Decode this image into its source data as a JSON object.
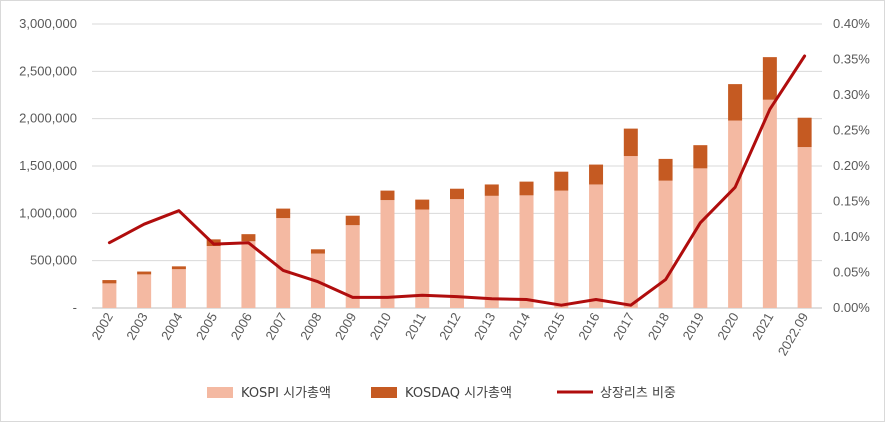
{
  "chart_data": {
    "type": "bar",
    "stacked": true,
    "categories": [
      "2002",
      "2003",
      "2004",
      "2005",
      "2006",
      "2007",
      "2008",
      "2009",
      "2010",
      "2011",
      "2012",
      "2013",
      "2014",
      "2015",
      "2016",
      "2017",
      "2018",
      "2019",
      "2020",
      "2021",
      "2022.09"
    ],
    "series": [
      {
        "name": "KOSPI 시가총액",
        "type": "bar",
        "axis": "left",
        "color": "#f4b9a2",
        "values": [
          260000,
          355000,
          410000,
          655000,
          705000,
          950000,
          575000,
          875000,
          1140000,
          1040000,
          1150000,
          1185000,
          1190000,
          1240000,
          1305000,
          1605000,
          1345000,
          1475000,
          1980000,
          2200000,
          1700000
        ]
      },
      {
        "name": "KOSDAQ 시가총액",
        "type": "bar",
        "axis": "left",
        "color": "#c55a22",
        "values": [
          35000,
          30000,
          30000,
          70000,
          75000,
          100000,
          45000,
          100000,
          100000,
          105000,
          110000,
          120000,
          145000,
          200000,
          210000,
          290000,
          230000,
          245000,
          385000,
          450000,
          310000
        ]
      },
      {
        "name": "상장리츠 비중",
        "type": "line",
        "axis": "right",
        "color": "#b00d0d",
        "values": [
          0.092,
          0.118,
          0.137,
          0.09,
          0.092,
          0.053,
          0.037,
          0.015,
          0.015,
          0.018,
          0.016,
          0.013,
          0.012,
          0.004,
          0.012,
          0.004,
          0.04,
          0.12,
          0.17,
          0.28,
          0.355
        ]
      }
    ],
    "y_left": {
      "ylim": [
        0,
        3000000
      ],
      "ticks": [
        0,
        500000,
        1000000,
        1500000,
        2000000,
        2500000,
        3000000
      ],
      "tick_labels": [
        "-",
        "500,000",
        "1,000,000",
        "1,500,000",
        "2,000,000",
        "2,500,000",
        "3,000,000"
      ]
    },
    "y_right": {
      "ylim": [
        0,
        0.4
      ],
      "ticks": [
        0,
        0.05,
        0.1,
        0.15,
        0.2,
        0.25,
        0.3,
        0.35,
        0.4
      ],
      "tick_labels": [
        "0.00%",
        "0.05%",
        "0.10%",
        "0.15%",
        "0.20%",
        "0.25%",
        "0.30%",
        "0.35%",
        "0.40%"
      ]
    },
    "grid": true,
    "legend_position": "bottom",
    "colors": {
      "grid": "#d9d9d9",
      "axis": "#bfbfbf",
      "tick_text": "#595959"
    }
  }
}
